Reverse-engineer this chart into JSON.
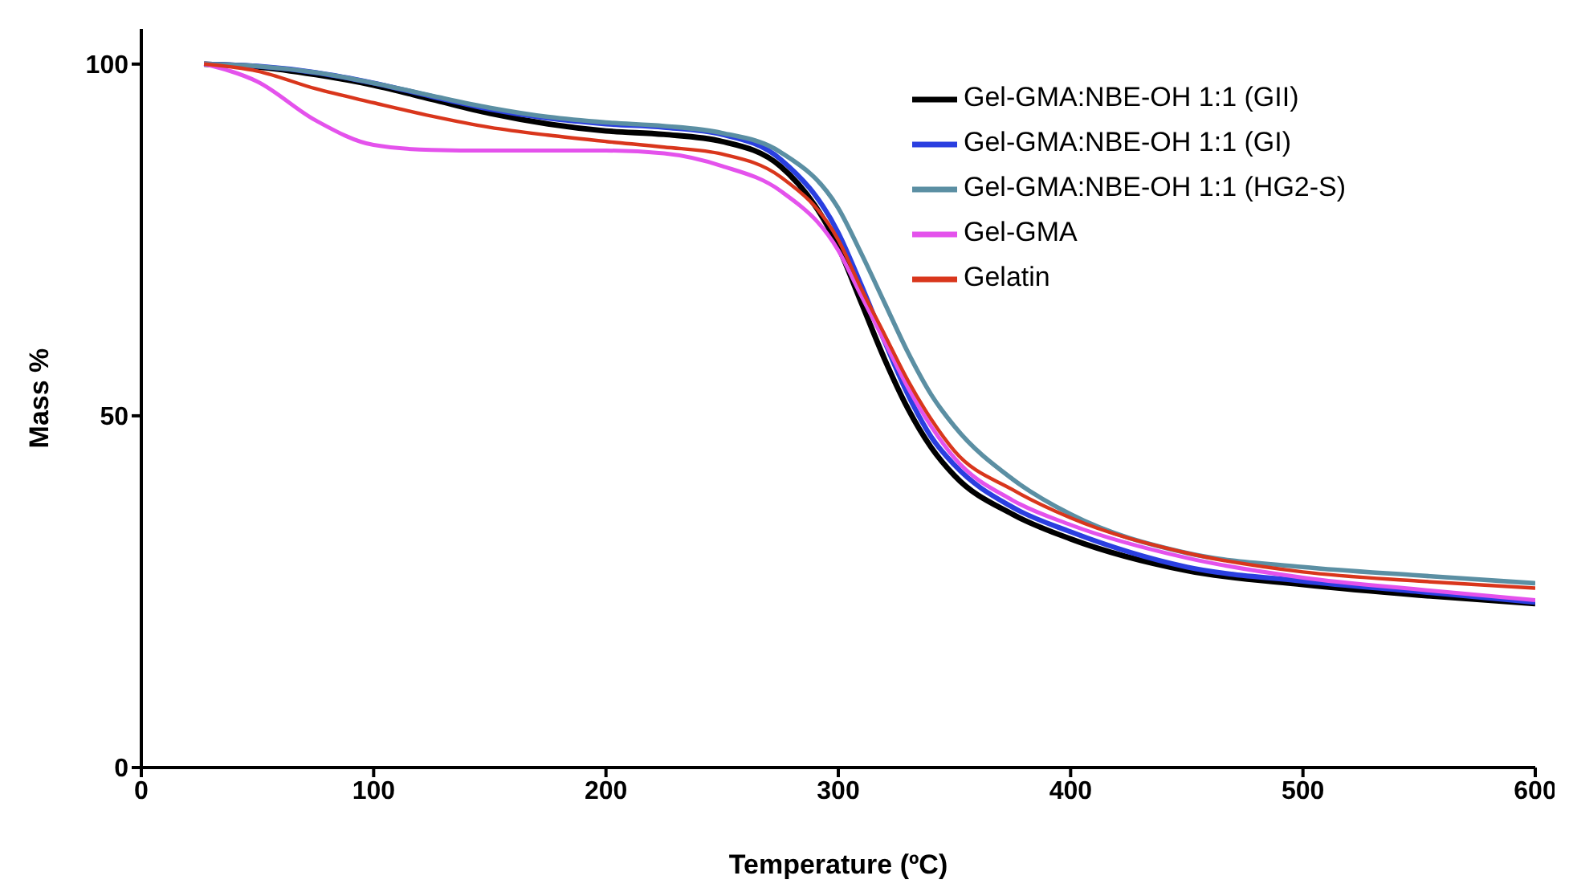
{
  "chart_data": {
    "type": "line",
    "xlabel": "Temperature (ºC)",
    "ylabel": "Mass %",
    "x": [
      27,
      50,
      75,
      100,
      125,
      150,
      175,
      200,
      225,
      250,
      275,
      300,
      310,
      320,
      330,
      340,
      350,
      375,
      400,
      450,
      500,
      550,
      600
    ],
    "series": [
      {
        "name": "Gel-GMA:NBE-OH 1:1  (GII)",
        "color": "#000000",
        "values": [
          100,
          99.6,
          98.5,
          97,
          95,
          93,
          91.5,
          90.5,
          90,
          89,
          85.5,
          74,
          66,
          58,
          51,
          45.5,
          41.5,
          36,
          32.5,
          28,
          26,
          24.5,
          23.3
        ]
      },
      {
        "name": "Gel-GMA:NBE-OH 1:1  (GI)",
        "color": "#2a3fe0",
        "values": [
          100,
          99.7,
          98.8,
          97.3,
          95.4,
          93.6,
          92.3,
          91.5,
          91,
          90,
          86.5,
          76,
          68.5,
          60.5,
          53,
          47,
          43,
          37,
          33.5,
          28.5,
          26.5,
          25,
          23.5
        ]
      },
      {
        "name": "Gel-GMA:NBE-OH 1:1  (HG2-S)",
        "color": "#5b8fa3",
        "values": [
          100,
          99.7,
          98.8,
          97.3,
          95.5,
          93.8,
          92.5,
          91.7,
          91.2,
          90.2,
          87.5,
          79.5,
          73,
          66,
          59,
          53,
          48.5,
          41,
          36,
          30.5,
          28.5,
          27.3,
          26.2
        ]
      },
      {
        "name": "Gel-GMA",
        "color": "#e452ec",
        "values": [
          100,
          97.5,
          92,
          88.5,
          87.8,
          87.7,
          87.7,
          87.7,
          87.3,
          85.5,
          82,
          73.5,
          67,
          60.5,
          54,
          48.5,
          44,
          38,
          34.5,
          29.8,
          27,
          25.3,
          23.8
        ]
      },
      {
        "name": "Gelatin",
        "color": "#d9361c",
        "values": [
          100,
          99,
          96.5,
          94.5,
          92.6,
          91,
          89.9,
          89,
          88.2,
          87.2,
          84,
          75,
          68,
          61.5,
          55,
          49.5,
          45,
          39.5,
          35.5,
          30.5,
          27.8,
          26.5,
          25.5
        ]
      }
    ],
    "xlim": [
      0,
      600
    ],
    "xticks": [
      0,
      100,
      200,
      300,
      400,
      500,
      600
    ],
    "ylim": [
      0,
      105
    ],
    "yticks": [
      0,
      50,
      100
    ],
    "grid": false,
    "legend": "top right",
    "marker": "none",
    "line_style": "solid"
  }
}
